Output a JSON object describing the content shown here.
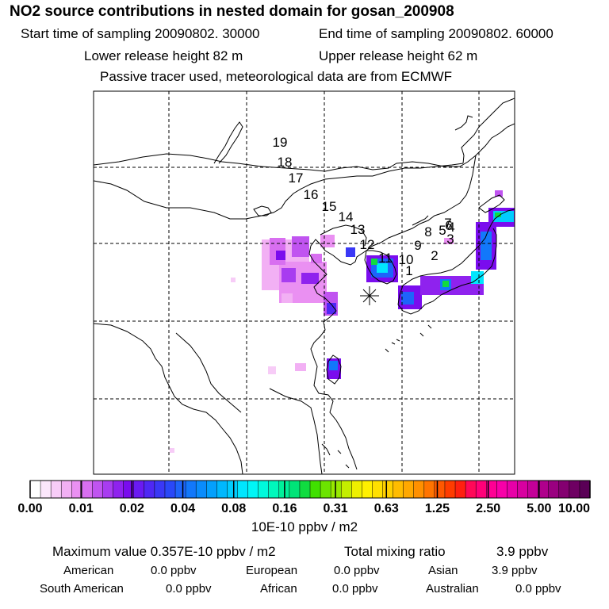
{
  "title": "NO2 source contributions in nested domain for gosan_200908",
  "header": {
    "start": "Start time of sampling 20090802. 30000",
    "end": "End time of sampling 20090802. 60000",
    "lower": "Lower release height   82 m",
    "upper": "Upper release height   62 m",
    "tracer": "Passive tracer used, meteorological data are from ECMWF"
  },
  "chart_data": {
    "type": "heatmap",
    "title": "NO2 source contributions in nested domain for gosan_200908",
    "colorbar": {
      "tick_labels": [
        "0.00",
        "0.01",
        "0.02",
        "0.04",
        "0.08",
        "0.16",
        "0.31",
        "0.63",
        "1.25",
        "2.50",
        "5.00",
        "10.00"
      ],
      "colors": [
        "#ffffff",
        "#fbe6fb",
        "#f7ccf7",
        "#f2b0f4",
        "#ea90f2",
        "#d86ff0",
        "#c054f0",
        "#a83cf0",
        "#8f22ee",
        "#7a0cee",
        "#6a1af2",
        "#4f28f4",
        "#3a38f6",
        "#2a48f8",
        "#1e64fa",
        "#1278fb",
        "#0a8cfc",
        "#04a0fd",
        "#00b8fe",
        "#00ccfe",
        "#00e6fe",
        "#00f6f6",
        "#00fadc",
        "#00f8bc",
        "#00f09a",
        "#00e478",
        "#10dc40",
        "#40e000",
        "#6ce400",
        "#98ea00",
        "#c4ee00",
        "#eef000",
        "#fff000",
        "#ffe000",
        "#ffd000",
        "#ffbc00",
        "#ffa800",
        "#ff9000",
        "#ff7400",
        "#ff5800",
        "#ff3c00",
        "#ff2010",
        "#ff0858",
        "#ff0078",
        "#ff0094",
        "#f800a8",
        "#e800a8",
        "#d800a0",
        "#c40098",
        "#b0008c",
        "#9a0080",
        "#840070",
        "#6e0062",
        "#5a0056"
      ],
      "unit": "10E-10 ppbv / m2"
    },
    "trajectory_labels": [
      "1",
      "2",
      "3",
      "4",
      "5",
      "6",
      "7",
      "8",
      "9",
      "10",
      "11",
      "12",
      "13",
      "14",
      "15",
      "16",
      "17",
      "18",
      "19"
    ],
    "source_site": "gosan",
    "grid": true
  },
  "stats": {
    "max_value": "Maximum value  0.357E-10 ppbv / m2",
    "total_label": "Total mixing ratio",
    "total_value": "3.9 ppbv",
    "regions": [
      {
        "name": "American",
        "value": "0.0 ppbv"
      },
      {
        "name": "European",
        "value": "0.0 ppbv"
      },
      {
        "name": "Asian",
        "value": "3.9 ppbv"
      },
      {
        "name": "South American",
        "value": "0.0 ppbv"
      },
      {
        "name": "African",
        "value": "0.0 ppbv"
      },
      {
        "name": "Australian",
        "value": "0.0 ppbv"
      }
    ]
  }
}
